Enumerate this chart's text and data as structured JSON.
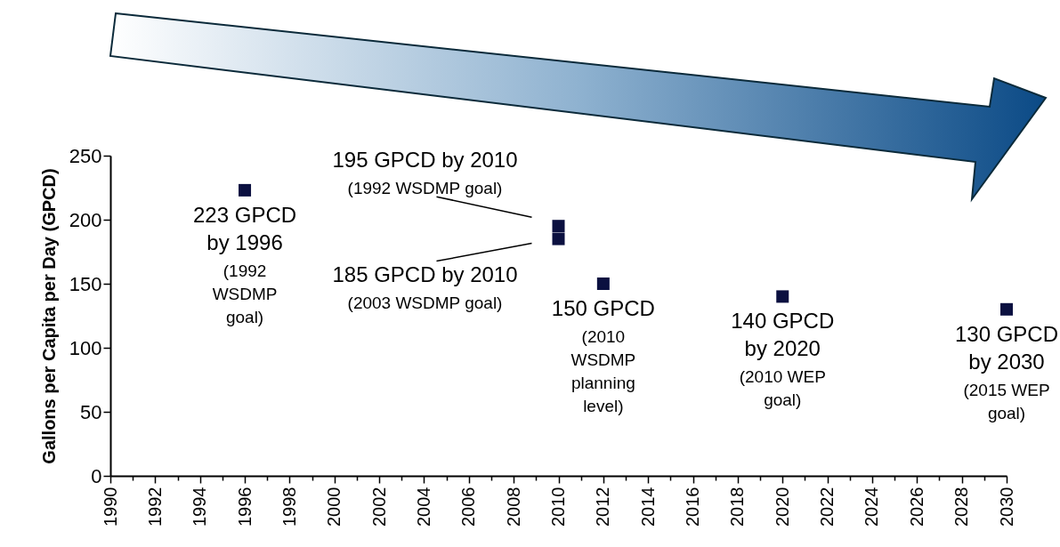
{
  "chart_data": {
    "type": "scatter",
    "ylabel": "Gallons per Capita per Day (GPCD)",
    "x": [
      1996,
      2010,
      2010,
      2012,
      2020,
      2030
    ],
    "values": [
      223,
      195,
      185,
      150,
      140,
      130
    ],
    "color": "#0b1040",
    "xlim": [
      1990,
      2030
    ],
    "ylim": [
      0,
      250
    ],
    "xticks": [
      1990,
      {
        "value": 1991,
        "label": null
      },
      1992,
      {
        "value": 1993,
        "label": null
      },
      1994,
      {
        "value": 1995,
        "label": null
      },
      1996,
      {
        "value": 1997,
        "label": null
      },
      1998,
      {
        "value": 1999,
        "label": null
      },
      2000,
      {
        "value": 2001,
        "label": null
      },
      2002,
      {
        "value": 2003,
        "label": null
      },
      2004,
      {
        "value": 2005,
        "label": null
      },
      2006,
      {
        "value": 2007,
        "label": null
      },
      2008,
      {
        "value": 2009,
        "label": null
      },
      2010,
      {
        "value": 2011,
        "label": null
      },
      2012,
      {
        "value": 2013,
        "label": null
      },
      2014,
      {
        "value": 2015,
        "label": null
      },
      2016,
      {
        "value": 2017,
        "label": null
      },
      2018,
      {
        "value": 2019,
        "label": null
      },
      2020,
      {
        "value": 2021,
        "label": null
      },
      2022,
      {
        "value": 2023,
        "label": null
      },
      2024,
      {
        "value": 2025,
        "label": null
      },
      2026,
      {
        "value": 2027,
        "label": null
      },
      2028,
      {
        "value": 2029,
        "label": null
      },
      2030
    ],
    "yticks": [
      0,
      50,
      100,
      150,
      200,
      250
    ],
    "grid": false,
    "marker": "square",
    "annotations": [
      {
        "text": "223 GPCD\nby 1996\n(1992\nWSDMP\ngoal)",
        "x": 1996,
        "y": 223
      },
      {
        "text": "195 GPCD by 2010\n(1992 WSDMP goal)",
        "x": 2010,
        "y": 195
      },
      {
        "text": "185 GPCD by 2010\n(2003 WSDMP goal)",
        "x": 2010,
        "y": 185
      },
      {
        "text": "150 GPCD\n(2010\nWSDMP\nplanning\nlevel)",
        "x": 2012,
        "y": 150
      },
      {
        "text": "140 GPCD\nby 2020\n(2010 WEP\ngoal)",
        "x": 2020,
        "y": 140
      },
      {
        "text": "130 GPCD\nby 2030\n(2015 WEP\ngoal)",
        "x": 2030,
        "y": 130
      }
    ]
  }
}
